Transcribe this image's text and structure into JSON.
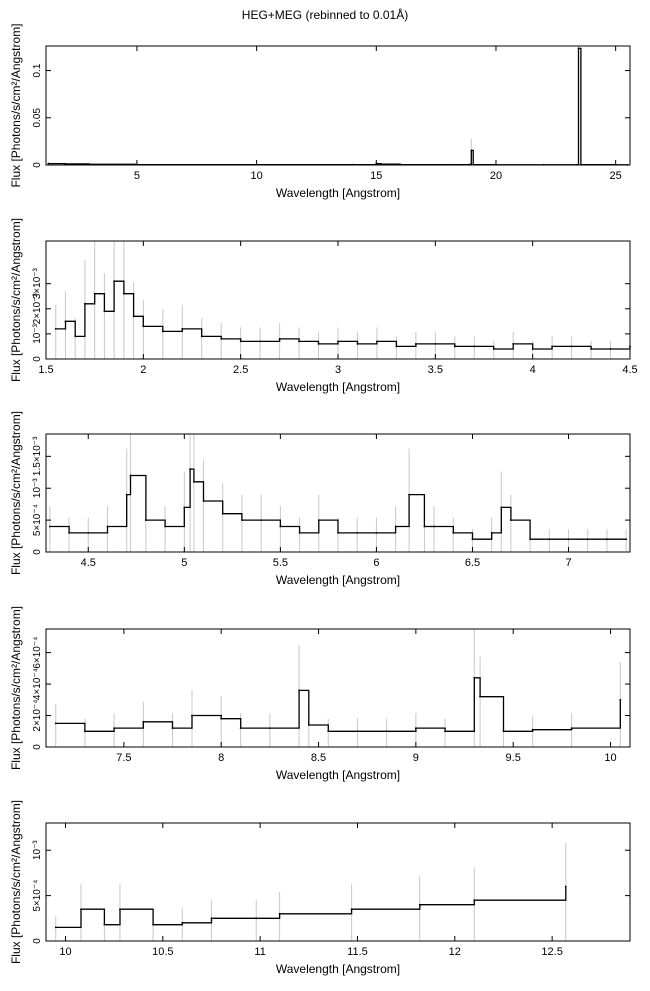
{
  "title": "HEG+MEG (rebinned to 0.01Å)",
  "chart_data": [
    {
      "type": "line",
      "xlabel": "Wavelength [Angstrom]",
      "ylabel": "Flux [Photons/s/cm²/Angstrom]",
      "xlim": [
        1.2,
        25.6
      ],
      "ylim": [
        0,
        0.126
      ],
      "xticks": [
        5,
        10,
        15,
        20,
        25
      ],
      "yticks": [
        0,
        0.05,
        0.1
      ],
      "yticklabels": [
        "0",
        "0.05",
        "0.1"
      ],
      "grid": false,
      "x": [
        1.3,
        2.0,
        3.0,
        5.0,
        8.0,
        10.0,
        12.0,
        14.0,
        15.0,
        15.2,
        16.0,
        18.0,
        18.9,
        18.97,
        19.05,
        20.0,
        22.0,
        23.35,
        23.45,
        23.55,
        25.0,
        25.5
      ],
      "y": [
        0.0015,
        0.0012,
        0.0007,
        0.0004,
        0.0003,
        0.0003,
        0.0003,
        0.0004,
        0.0014,
        0.0008,
        0.0004,
        0.0004,
        0.0005,
        0.0155,
        0.0004,
        0.0002,
        0.0002,
        0.0003,
        0.1235,
        0.0003,
        0.0002,
        0.0002
      ]
    },
    {
      "type": "line",
      "xlabel": "Wavelength [Angstrom]",
      "ylabel": "Flux [Photons/s/cm²/Angstrom]",
      "xlim": [
        1.5,
        4.5
      ],
      "ylim": [
        0,
        0.0047
      ],
      "xticks": [
        1.5,
        2,
        2.5,
        3,
        3.5,
        4,
        4.5
      ],
      "yticks": [
        0,
        0.001,
        0.002,
        0.003
      ],
      "yticklabels": [
        "0",
        "10⁻³",
        "2×10⁻³",
        "3×10⁻³"
      ],
      "grid": false,
      "x": [
        1.55,
        1.6,
        1.65,
        1.7,
        1.75,
        1.8,
        1.85,
        1.9,
        1.95,
        2.0,
        2.1,
        2.2,
        2.3,
        2.4,
        2.5,
        2.6,
        2.7,
        2.8,
        2.9,
        3.0,
        3.1,
        3.2,
        3.3,
        3.4,
        3.5,
        3.6,
        3.7,
        3.8,
        3.9,
        4.0,
        4.1,
        4.2,
        4.3,
        4.4,
        4.5
      ],
      "y": [
        0.0012,
        0.0015,
        0.0009,
        0.0022,
        0.0026,
        0.0019,
        0.0031,
        0.0026,
        0.0017,
        0.0013,
        0.0011,
        0.0012,
        0.0009,
        0.0008,
        0.0007,
        0.0007,
        0.0008,
        0.0007,
        0.0006,
        0.0007,
        0.0006,
        0.0007,
        0.0005,
        0.0006,
        0.0006,
        0.0005,
        0.0005,
        0.0004,
        0.0006,
        0.0004,
        0.0005,
        0.0005,
        0.0004,
        0.0004,
        0.0005
      ]
    },
    {
      "type": "line",
      "xlabel": "Wavelength [Angstrom]",
      "ylabel": "Flux [Photons/s/cm²/Angstrom]",
      "xlim": [
        4.28,
        7.32
      ],
      "ylim": [
        0,
        0.00185
      ],
      "xticks": [
        4.5,
        5,
        5.5,
        6,
        6.5,
        7
      ],
      "yticks": [
        0,
        0.0005,
        0.001,
        0.0015
      ],
      "yticklabels": [
        "0",
        "5×10⁻⁴",
        "10⁻³",
        "1.5×10⁻³"
      ],
      "grid": false,
      "x": [
        4.3,
        4.4,
        4.5,
        4.6,
        4.7,
        4.72,
        4.8,
        4.9,
        5.0,
        5.03,
        5.05,
        5.1,
        5.2,
        5.3,
        5.4,
        5.5,
        5.6,
        5.7,
        5.8,
        5.9,
        6.0,
        6.1,
        6.17,
        6.25,
        6.3,
        6.4,
        6.5,
        6.6,
        6.65,
        6.7,
        6.8,
        6.9,
        7.0,
        7.1,
        7.2,
        7.3
      ],
      "y": [
        0.0004,
        0.0003,
        0.0003,
        0.0004,
        0.0009,
        0.0012,
        0.0005,
        0.0004,
        0.0007,
        0.0013,
        0.0011,
        0.0008,
        0.0006,
        0.0005,
        0.0005,
        0.0004,
        0.0003,
        0.0005,
        0.0003,
        0.0003,
        0.0003,
        0.0004,
        0.0009,
        0.0004,
        0.0004,
        0.0003,
        0.0002,
        0.0003,
        0.0007,
        0.0005,
        0.0002,
        0.0002,
        0.0002,
        0.0002,
        0.0002,
        0.0002
      ]
    },
    {
      "type": "line",
      "xlabel": "Wavelength [Angstrom]",
      "ylabel": "Flux [Photons/s/cm²/Angstrom]",
      "xlim": [
        7.1,
        10.1
      ],
      "ylim": [
        0,
        0.00075
      ],
      "xticks": [
        7.5,
        8,
        8.5,
        9,
        9.5,
        10
      ],
      "yticks": [
        0,
        0.0002,
        0.0004,
        0.0006
      ],
      "yticklabels": [
        "0",
        "2×10⁻⁴",
        "4×10⁻⁴",
        "6×10⁻⁴"
      ],
      "grid": false,
      "x": [
        7.15,
        7.3,
        7.45,
        7.6,
        7.75,
        7.85,
        8.0,
        8.1,
        8.25,
        8.4,
        8.45,
        8.55,
        8.7,
        8.85,
        9.0,
        9.15,
        9.3,
        9.33,
        9.45,
        9.6,
        9.8,
        10.05
      ],
      "y": [
        0.00015,
        0.0001,
        0.00012,
        0.00016,
        0.00012,
        0.0002,
        0.00018,
        0.00012,
        0.00012,
        0.00036,
        0.00014,
        0.0001,
        0.0001,
        0.0001,
        0.00012,
        0.0001,
        0.00044,
        0.00032,
        0.0001,
        0.00011,
        0.00012,
        0.0003
      ]
    },
    {
      "type": "line",
      "xlabel": "Wavelength [Angstrom]",
      "ylabel": "Flux [Photons/s/cm²/Angstrom]",
      "xlim": [
        9.9,
        12.9
      ],
      "ylim": [
        0,
        0.0013
      ],
      "xticks": [
        10,
        10.5,
        11,
        11.5,
        12,
        12.5
      ],
      "yticks": [
        0,
        0.0005,
        0.001
      ],
      "yticklabels": [
        "0",
        "5×10⁻⁴",
        "10⁻³"
      ],
      "grid": false,
      "x": [
        9.95,
        10.08,
        10.2,
        10.28,
        10.45,
        10.6,
        10.75,
        10.98,
        11.1,
        11.47,
        11.82,
        12.1,
        12.57
      ],
      "y": [
        0.00015,
        0.00035,
        0.00018,
        0.00035,
        0.00018,
        0.0002,
        0.00025,
        0.00025,
        0.0003,
        0.00035,
        0.0004,
        0.00045,
        0.0006
      ]
    }
  ]
}
